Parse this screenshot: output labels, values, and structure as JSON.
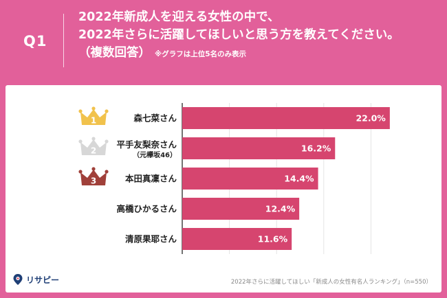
{
  "question": {
    "label": "Q1",
    "line1": "2022年新成人を迎える女性の中で、",
    "line2": "2022年さらに活躍してほしいと思う方を教えてください。",
    "line3": "（複数回答）",
    "note": "※グラフは上位5名のみ表示"
  },
  "chart_data": {
    "type": "bar",
    "orientation": "horizontal",
    "categories": [
      "森七菜さん",
      "平手友梨奈さん",
      "本田真凜さん",
      "高橋ひかるさん",
      "清原果耶さん"
    ],
    "category_sublabels": [
      "",
      "（元欅坂46）",
      "",
      "",
      ""
    ],
    "values": [
      22.0,
      16.2,
      14.4,
      12.4,
      11.6
    ],
    "value_labels": [
      "22.0%",
      "16.2%",
      "14.4%",
      "12.4%",
      "11.6%"
    ],
    "ranks": [
      "1",
      "2",
      "3"
    ],
    "rank_colors": [
      "#f1c24c",
      "#d7d7d7",
      "#a0403a"
    ],
    "bar_color": "#d6456f",
    "xlim": [
      0,
      25
    ],
    "grid": true,
    "grid_values": [
      5,
      10,
      15,
      20
    ]
  },
  "footer": {
    "logo": "リサピー",
    "note": "2022年さらに活躍してほしい「新成人の女性有名人ランキング」（n=550）"
  }
}
